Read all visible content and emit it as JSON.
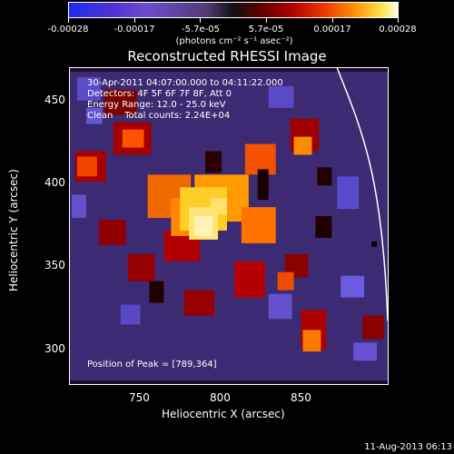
{
  "colorbar": {
    "labels": [
      "-0.00028",
      "-0.00017",
      "-5.7e-05",
      "5.7e-05",
      "0.00017",
      "0.00028"
    ],
    "units_text": "(photons cm⁻² s⁻¹ asec⁻²)"
  },
  "title": "Reconstructed RHESSI Image",
  "annotations": {
    "line1": "30-Apr-2011 04:07:00.000 to 04:11:22.000",
    "line2": "Detectors: 4F 5F 6F 7F 8F, Att 0",
    "line3": "Energy Range: 12.0 - 25.0 keV",
    "line4": "Clean    Total counts: 2.24E+04",
    "peak": "Position of Peak = [789,364]"
  },
  "axes": {
    "xlabel": "Heliocentric X (arcsec)",
    "ylabel": "Heliocentric Y (arcsec)",
    "xticks": [
      "750",
      "800",
      "850"
    ],
    "yticks": [
      "450",
      "400",
      "350",
      "300"
    ]
  },
  "footer": "11-Aug-2013 06:13",
  "colors": {
    "background": "#000000",
    "frame": "#ffffff",
    "limb": "#ffffff",
    "colorbar_low": "#1d2bf3",
    "colorbar_mid": "#111111",
    "colorbar_high": "#fffde8"
  }
}
